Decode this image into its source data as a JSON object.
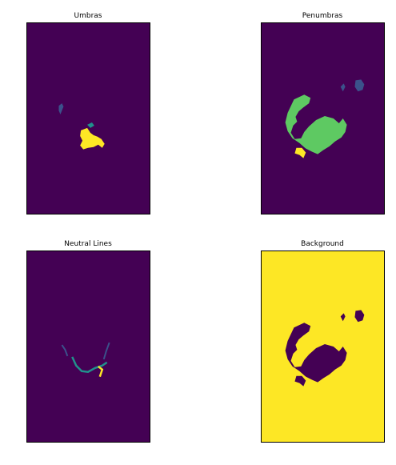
{
  "figure": {
    "panels": [
      {
        "id": "umbras",
        "title": "Umbras"
      },
      {
        "id": "penumbras",
        "title": "Penumbras"
      },
      {
        "id": "neutral",
        "title": "Neutral Lines"
      },
      {
        "id": "background",
        "title": "Background"
      }
    ]
  },
  "colors": {
    "viridis_dark": "#440154",
    "viridis_blue": "#3b528b",
    "viridis_teal": "#21918c",
    "viridis_green": "#5ec962",
    "viridis_yellow": "#fde725"
  }
}
